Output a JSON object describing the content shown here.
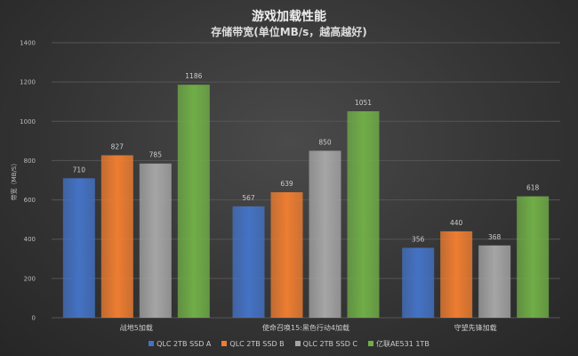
{
  "chart_data": {
    "type": "bar",
    "title": "游戏加载性能",
    "subtitle": "存储带宽(单位MB/s，越高越好)",
    "ylabel": "带宽（MB/S）",
    "xlabel": "",
    "ylim": [
      0,
      1400
    ],
    "yticks": [
      0,
      200,
      400,
      600,
      800,
      1000,
      1200,
      1400
    ],
    "grid": true,
    "legend_position": "bottom",
    "categories": [
      "战地5加载",
      "使命召唤15:黑色行动4加载",
      "守望先锋加载"
    ],
    "series": [
      {
        "name": "QLC 2TB SSD A",
        "color": "#4472c4",
        "values": [
          710,
          567,
          356
        ]
      },
      {
        "name": "QLC 2TB SSD B",
        "color": "#ed7d31",
        "values": [
          827,
          639,
          440
        ]
      },
      {
        "name": "QLC 2TB SSD C",
        "color": "#a5a5a5",
        "values": [
          785,
          850,
          368
        ]
      },
      {
        "name": "亿联AE531 1TB",
        "color": "#70ad47",
        "values": [
          1186,
          1051,
          618
        ]
      }
    ]
  }
}
